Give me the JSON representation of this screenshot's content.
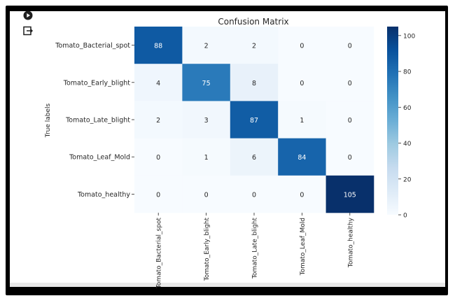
{
  "toolbar": {
    "icons": [
      "run-cell-icon",
      "output-toggle-icon"
    ]
  },
  "chart_data": {
    "type": "heatmap",
    "title": "Confusion Matrix",
    "ylabel": "True labels",
    "xlabel": "",
    "rows": [
      "Tomato_Bacterial_spot",
      "Tomato_Early_blight",
      "Tomato_Late_blight",
      "Tomato_Leaf_Mold",
      "Tomato_healthy"
    ],
    "columns": [
      "Tomato_Bacterial_spot",
      "Tomato_Early_blight",
      "Tomato_Late_blight",
      "Tomato_Leaf_Mold",
      "Tomato_healthy"
    ],
    "values": [
      [
        88,
        2,
        2,
        0,
        0
      ],
      [
        4,
        75,
        8,
        0,
        0
      ],
      [
        2,
        3,
        87,
        1,
        0
      ],
      [
        0,
        1,
        6,
        84,
        0
      ],
      [
        0,
        0,
        0,
        0,
        105
      ]
    ],
    "colorbar": {
      "range": [
        0,
        105
      ],
      "ticks": [
        "0",
        "20",
        "40",
        "60",
        "80",
        "100"
      ],
      "tick_values": [
        0,
        20,
        40,
        60,
        80,
        100
      ],
      "colormap": "Blues"
    }
  }
}
